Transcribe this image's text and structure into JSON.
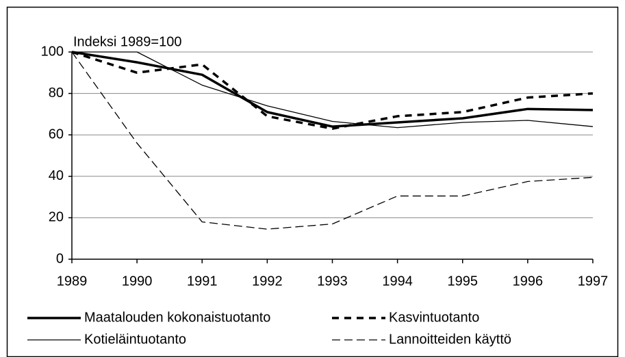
{
  "chart_data": {
    "type": "line",
    "annotation": "Indeksi 1989=100",
    "x": [
      1989,
      1990,
      1991,
      1992,
      1993,
      1994,
      1995,
      1996,
      1997
    ],
    "series": [
      {
        "name": "Maatalouden kokonaistuotanto",
        "color": "#000000",
        "values": [
          100,
          95,
          89,
          71,
          64,
          66,
          68,
          72.5,
          72
        ]
      },
      {
        "name": "Kasvintuotanto",
        "color": "#000000",
        "values": [
          100,
          90,
          94,
          69,
          63,
          69,
          71,
          78,
          80
        ]
      },
      {
        "name": "Kotieläintuotanto",
        "color": "#000000",
        "values": [
          100,
          100,
          84,
          74,
          66.5,
          63.5,
          66,
          67,
          64
        ]
      },
      {
        "name": "Lannoitteiden käyttö",
        "color": "#000000",
        "values": [
          100,
          56,
          18,
          14.5,
          17,
          30.5,
          30.5,
          37.5,
          39.5
        ]
      }
    ],
    "xlim": [
      1989,
      1997
    ],
    "xticks": [
      1989,
      1990,
      1991,
      1992,
      1993,
      1994,
      1995,
      1996,
      1997
    ],
    "ylim": [
      0,
      100
    ],
    "yticks": [
      0,
      20,
      40,
      60,
      80,
      100
    ],
    "grid": true
  }
}
